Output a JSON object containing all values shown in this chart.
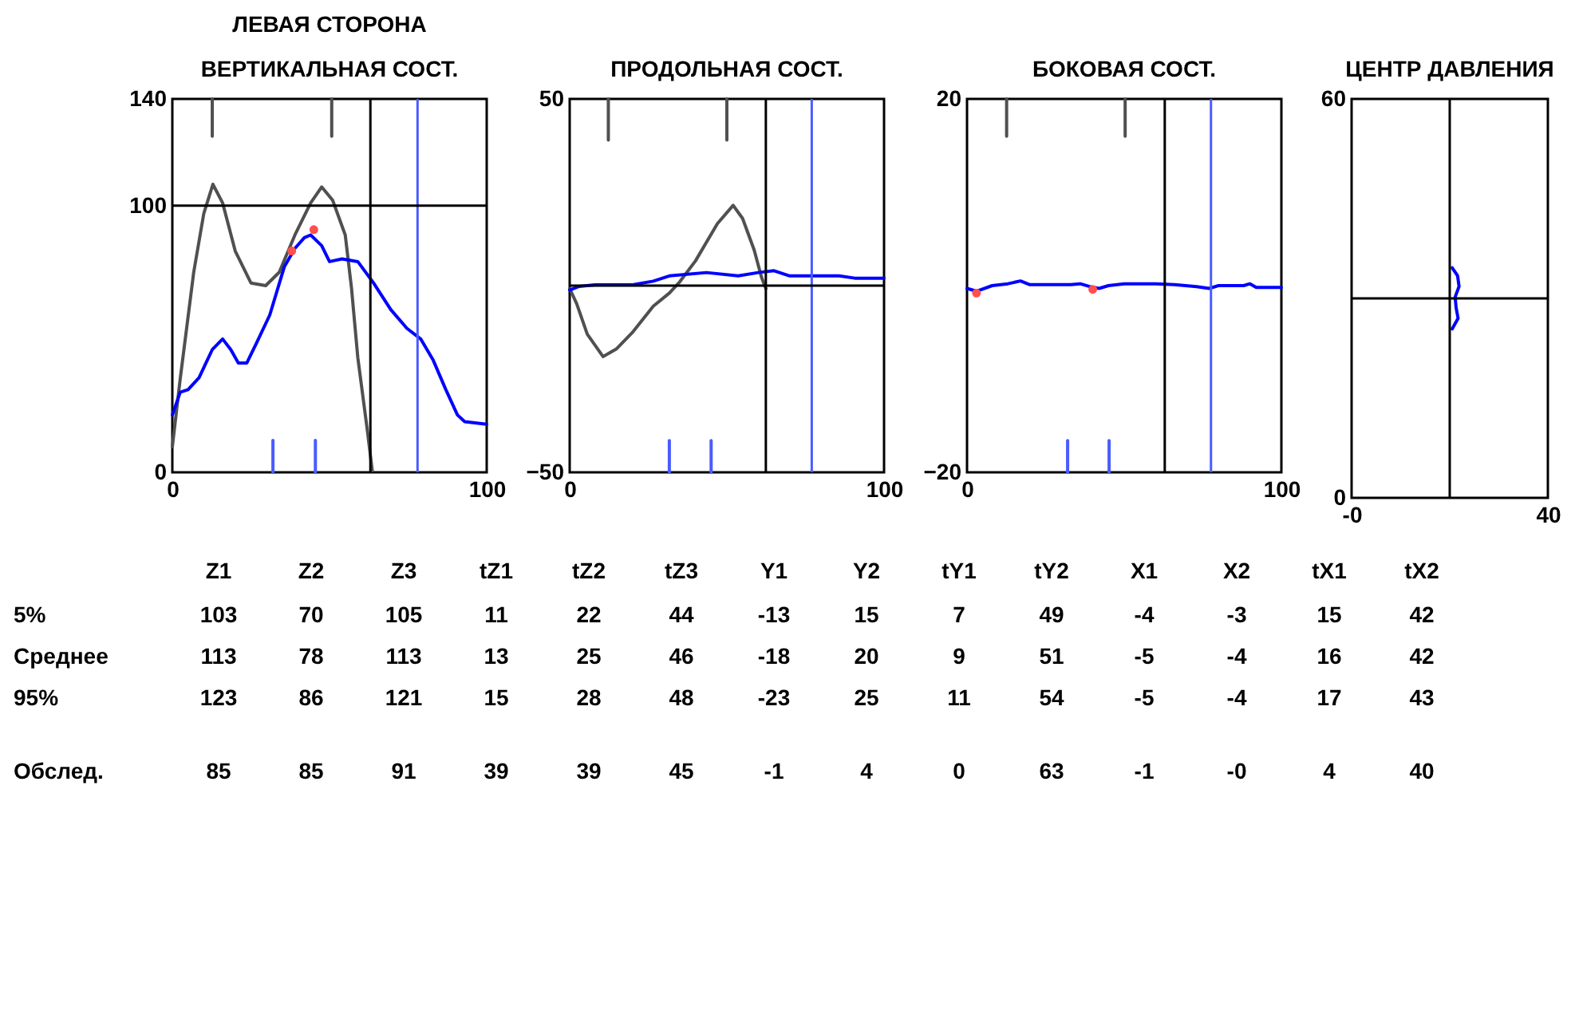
{
  "chart_data": [
    {
      "type": "line",
      "title": "ЛЕВАЯ СТОРОНА",
      "subtitle": "ВЕРТИКАЛЬНАЯ СОСТ.",
      "xlim": [
        0,
        100
      ],
      "ylim": [
        0,
        140
      ],
      "xticks": [
        0,
        100
      ],
      "yticks": [
        0,
        100,
        140
      ],
      "series": [
        {
          "color": "#505050",
          "x": [
            0,
            2.5,
            6.8,
            10,
            12.9,
            16,
            20,
            25,
            29.7,
            34,
            39,
            44,
            47.5,
            51,
            55,
            57,
            59,
            62,
            63.6
          ],
          "values": [
            9.6,
            35,
            75,
            97,
            108,
            101,
            83,
            71,
            70,
            75,
            89,
            101,
            107,
            102,
            89,
            69,
            43,
            16,
            0.6
          ]
        },
        {
          "color": "#0000ff",
          "x": [
            0,
            2.5,
            5,
            8.5,
            12.7,
            16,
            18.6,
            21,
            23.7,
            27,
            31,
            35.6,
            39,
            42,
            44,
            47.5,
            50,
            54,
            59,
            64,
            69.5,
            74.6,
            79,
            83,
            87,
            90.7,
            93,
            100
          ],
          "values": [
            21.5,
            30,
            31,
            35.5,
            46,
            50,
            46,
            41,
            41,
            49,
            59,
            77,
            84,
            88,
            89,
            85,
            79,
            80,
            79,
            71,
            61,
            54,
            50,
            42,
            31,
            21.5,
            19,
            18
          ]
        },
        {
          "type": "scatter",
          "color": "#ff5050",
          "x": [
            38,
            45
          ],
          "values": [
            83,
            91
          ]
        },
        {
          "color": "#505050",
          "x": [
            12.7,
            12.7
          ],
          "values": [
            140,
            126
          ]
        },
        {
          "color": "#505050",
          "x": [
            50.7,
            50.7
          ],
          "values": [
            140,
            126
          ]
        },
        {
          "color": "#4a5cff",
          "x": [
            32,
            32
          ],
          "values": [
            0,
            12
          ]
        },
        {
          "color": "#4a5cff",
          "x": [
            45.5,
            45.5
          ],
          "values": [
            0,
            12
          ]
        }
      ],
      "ref_lines": [
        {
          "axis": "x",
          "value": 63,
          "color": "#000000"
        },
        {
          "axis": "x",
          "value": 78,
          "color": "#4a5cff"
        },
        {
          "axis": "y",
          "value": 100,
          "color": "#000000"
        }
      ]
    },
    {
      "type": "line",
      "title": "ПРОДОЛЬНАЯ СОСТ.",
      "xlim": [
        0,
        100
      ],
      "ylim": [
        -50,
        50
      ],
      "xticks": [
        0,
        100
      ],
      "yticks": [
        -50,
        50
      ],
      "series": [
        {
          "color": "#505050",
          "x": [
            0,
            2.2,
            5.6,
            10.6,
            14.8,
            19.9,
            26.6,
            31.7,
            35,
            40,
            47,
            52,
            55,
            58.7,
            61,
            62.4
          ],
          "values": [
            -0.8,
            -4.8,
            -13,
            -19,
            -17,
            -12.6,
            -5.5,
            -2,
            1,
            6.6,
            16.6,
            21.5,
            18,
            9.5,
            2.3,
            -0.8
          ]
        },
        {
          "color": "#0000ff",
          "x": [
            0,
            3,
            8,
            20,
            26.6,
            31.7,
            43.5,
            53.6,
            60,
            65,
            70,
            85.7,
            90.7,
            100
          ],
          "values": [
            -1.2,
            -0.2,
            0.2,
            0.2,
            1.2,
            2.6,
            3.5,
            2.6,
            3.5,
            4,
            2.6,
            2.6,
            2,
            2
          ]
        },
        {
          "color": "#505050",
          "x": [
            12.3,
            12.3
          ],
          "values": [
            50,
            39
          ]
        },
        {
          "color": "#505050",
          "x": [
            50,
            50
          ],
          "values": [
            50,
            39
          ]
        },
        {
          "color": "#4a5cff",
          "x": [
            31.7,
            31.7
          ],
          "values": [
            -50,
            -41.5
          ]
        },
        {
          "color": "#4a5cff",
          "x": [
            45,
            45
          ],
          "values": [
            -50,
            -41.5
          ]
        }
      ],
      "ref_lines": [
        {
          "axis": "x",
          "value": 62.4,
          "color": "#000000"
        },
        {
          "axis": "x",
          "value": 77,
          "color": "#4a5cff"
        },
        {
          "axis": "y",
          "value": 0,
          "color": "#000000"
        }
      ]
    },
    {
      "type": "line",
      "title": "БОКОВАЯ СОСТ.",
      "xlim": [
        0,
        100
      ],
      "ylim": [
        -20,
        20
      ],
      "xticks": [
        0,
        100
      ],
      "yticks": [
        -20,
        20
      ],
      "series": [
        {
          "color": "#0000ff",
          "x": [
            0,
            3,
            8,
            13,
            17,
            20,
            33,
            36,
            39,
            42,
            45,
            50,
            60,
            66,
            73,
            77,
            80,
            88,
            90,
            92,
            100
          ],
          "values": [
            -0.3,
            -0.6,
            0,
            0.2,
            0.5,
            0.1,
            0.1,
            0.2,
            -0.1,
            -0.3,
            0,
            0.2,
            0.2,
            0.1,
            -0.1,
            -0.3,
            0,
            0,
            0.2,
            -0.2,
            -0.2
          ]
        },
        {
          "type": "scatter",
          "color": "#ff5050",
          "x": [
            3,
            40
          ],
          "values": [
            -0.8,
            -0.4
          ]
        },
        {
          "color": "#505050",
          "x": [
            12.6,
            12.6
          ],
          "values": [
            20,
            16
          ]
        },
        {
          "color": "#505050",
          "x": [
            50.3,
            50.3
          ],
          "values": [
            20,
            16
          ]
        },
        {
          "color": "#4a5cff",
          "x": [
            32,
            32
          ],
          "values": [
            -20,
            -16.6
          ]
        },
        {
          "color": "#4a5cff",
          "x": [
            45.2,
            45.2
          ],
          "values": [
            -20,
            -16.6
          ]
        }
      ],
      "ref_lines": [
        {
          "axis": "x",
          "value": 62.9,
          "color": "#000000"
        },
        {
          "axis": "x",
          "value": 77.6,
          "color": "#4a5cff"
        }
      ]
    },
    {
      "type": "line",
      "title": "ЦЕНТР ДАВЛЕНИЯ",
      "xlim": [
        0,
        40
      ],
      "ylim": [
        0,
        60
      ],
      "xticks": [
        {
          "value": 0,
          "label": "-0"
        },
        40
      ],
      "yticks": [
        0,
        60
      ],
      "series": [
        {
          "color": "#0000ff",
          "x": [
            20.5,
            21.6,
            21.9,
            21.1,
            21.3,
            21.7,
            20.5
          ],
          "values": [
            34.6,
            33.4,
            31.8,
            30.2,
            28.6,
            27,
            25.4
          ]
        }
      ],
      "ref_lines": [
        {
          "axis": "x",
          "value": 20,
          "color": "#000000"
        },
        {
          "axis": "y",
          "value": 30,
          "color": "#000000"
        }
      ]
    },
    {
      "type": "heatmap",
      "categories": [
        "Z1",
        "Z2",
        "Z3",
        "tZ1",
        "tZ2",
        "tZ3",
        "Y1",
        "Y2",
        "tY1",
        "tY2",
        "X1",
        "X2",
        "tX1",
        "tX2"
      ],
      "y_categories": [
        "5%",
        "Среднее",
        "95%"
      ],
      "cells": [
        [
          103,
          70,
          105,
          11,
          22,
          44,
          -13,
          15,
          7,
          49,
          -4,
          -3,
          15,
          42
        ],
        [
          113,
          78,
          113,
          13,
          25,
          46,
          -18,
          20,
          9,
          51,
          -5,
          -4,
          16,
          42
        ],
        [
          123,
          86,
          121,
          15,
          28,
          48,
          -23,
          25,
          11,
          54,
          -5,
          -4,
          17,
          43
        ]
      ],
      "data_labels": true
    },
    {
      "type": "heatmap",
      "categories": [
        null,
        null,
        null,
        null,
        null,
        null,
        null,
        null,
        null,
        null,
        null,
        null,
        null,
        null
      ],
      "y_categories": [
        "Обслед."
      ],
      "tick_labels": "y",
      "cells": [
        [
          85,
          85,
          91,
          39,
          39,
          45,
          -1,
          4,
          0,
          63,
          -1,
          0,
          4,
          40
        ]
      ],
      "cell_labels": [
        [
          "85",
          "85",
          "91",
          "39",
          "39",
          "45",
          "-1",
          "4",
          "0",
          "63",
          "-1",
          "-0",
          "4",
          "40"
        ]
      ]
    }
  ]
}
